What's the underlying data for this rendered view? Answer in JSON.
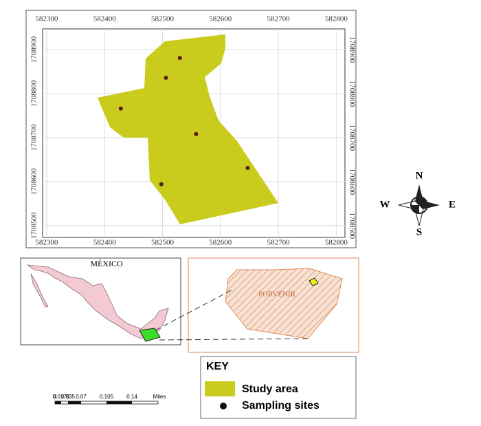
{
  "map": {
    "xticks": [
      582300,
      582400,
      582500,
      582600,
      582700,
      582800
    ],
    "yticks": [
      1708500,
      1708600,
      1708700,
      1708800,
      1708900
    ],
    "xlim": [
      582293,
      582815
    ],
    "ylim": [
      1708473,
      1708947
    ],
    "sites": [
      {
        "x": 582530,
        "y": 1708881
      },
      {
        "x": 582506,
        "y": 1708836
      },
      {
        "x": 582428,
        "y": 1708766
      },
      {
        "x": 582558,
        "y": 1708708
      },
      {
        "x": 582647,
        "y": 1708631
      },
      {
        "x": 582498,
        "y": 1708594
      }
    ]
  },
  "compass": {
    "n": "N",
    "s": "S",
    "e": "E",
    "w": "W"
  },
  "inset": {
    "country": "MÉXICO",
    "locality": "PORVENIR"
  },
  "key": {
    "title": "KEY",
    "items": [
      "Study area",
      "Sampling sites"
    ]
  },
  "scale": {
    "labels": [
      "0",
      "0.0175",
      "0.035",
      "0.07",
      "0.105",
      "0.14"
    ],
    "unit": "Miles"
  }
}
